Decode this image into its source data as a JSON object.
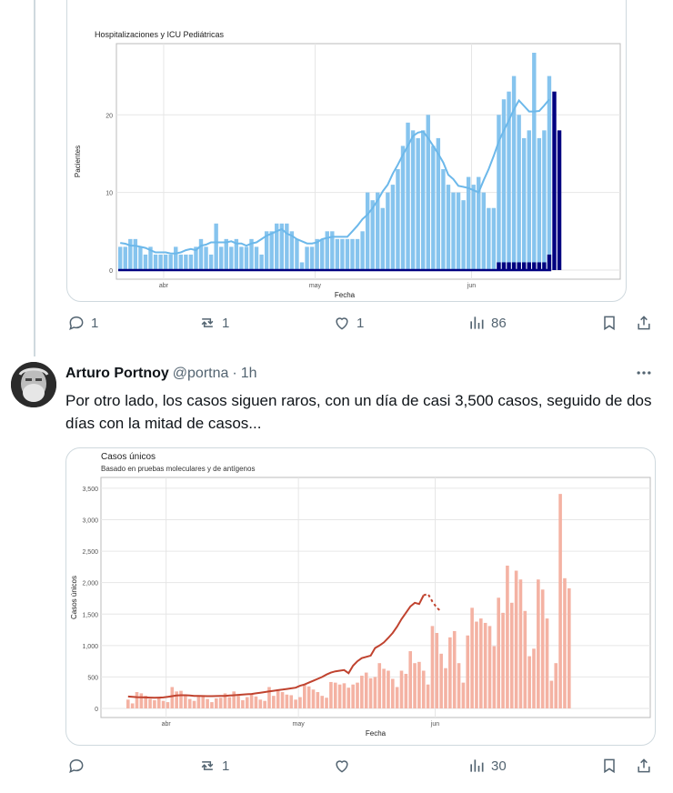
{
  "chart1": {
    "title": "Hospitalizaciones y ICU Pediátricas",
    "xlabel": "Fecha",
    "ylabel": "Pacientes",
    "colors": {
      "hosp": "#86c4ee",
      "icu": "#000080",
      "trend": "#6cb8ea"
    }
  },
  "chart2": {
    "title": "Casos únicos",
    "subtitle": "Basado en pruebas moleculares y de antígenos",
    "xlabel": "Fecha",
    "ylabel": "Casos únicos",
    "colors": {
      "bar": "#f4b2a3",
      "trend": "#c0432f"
    }
  },
  "chart_data": [
    {
      "type": "bar",
      "title": "Hospitalizaciones y ICU Pediátricas",
      "xlabel": "Fecha",
      "ylabel": "Pacientes",
      "ylim": [
        0,
        28
      ],
      "y_ticks": [
        0,
        10,
        20
      ],
      "x_ticks": [
        {
          "label": "abr",
          "index": 9
        },
        {
          "label": "may",
          "index": 39
        },
        {
          "label": "jun",
          "index": 70
        }
      ],
      "series": [
        {
          "values": [
            3,
            3,
            4,
            4,
            3,
            2,
            3,
            2,
            2,
            2,
            2,
            3,
            2,
            2,
            2,
            3,
            4,
            3,
            2,
            6,
            3,
            4,
            3,
            4,
            3,
            3,
            4,
            3,
            2,
            5,
            5,
            6,
            6,
            6,
            5,
            4,
            1,
            3,
            3,
            4,
            4,
            5,
            5,
            4,
            4,
            4,
            4,
            4,
            5,
            10,
            9,
            10,
            8,
            10,
            11,
            13,
            16,
            19,
            18,
            17,
            18,
            20,
            16,
            17,
            13,
            11,
            10,
            10,
            9,
            12,
            11,
            12,
            10,
            8,
            8,
            20,
            22,
            23,
            25,
            20,
            17,
            18,
            28,
            17,
            18,
            25
          ]
        },
        {
          "values": [
            0,
            0,
            0,
            0,
            0,
            0,
            0,
            0,
            0,
            0,
            0,
            0,
            0,
            0,
            0,
            0,
            0,
            0,
            0,
            0,
            0,
            0,
            0,
            0,
            0,
            0,
            0,
            0,
            0,
            0,
            0,
            0,
            0,
            0,
            0,
            0,
            0,
            0,
            0,
            0,
            0,
            0,
            0,
            0,
            0,
            0,
            0,
            0,
            0,
            0,
            0,
            0,
            0,
            0,
            0,
            0,
            0,
            0,
            0,
            0,
            0,
            0,
            0,
            0,
            0,
            0,
            0,
            0,
            0,
            0,
            0,
            0,
            0,
            0,
            0,
            1,
            1,
            1,
            1,
            1,
            1,
            1,
            1,
            1,
            1,
            2,
            23,
            18
          ]
        }
      ]
    },
    {
      "type": "bar",
      "title": "Casos únicos",
      "subtitle": "Basado en pruebas moleculares y de antígenos",
      "xlabel": "Fecha",
      "ylabel": "Casos únicos",
      "ylim": [
        0,
        3600
      ],
      "y_ticks": [
        {
          "value": 0,
          "label": "0"
        },
        {
          "value": 500,
          "label": "500"
        },
        {
          "value": 1000,
          "label": "1,000"
        },
        {
          "value": 1500,
          "label": "1,500"
        },
        {
          "value": 2000,
          "label": "2,000"
        },
        {
          "value": 2500,
          "label": "2,500"
        },
        {
          "value": 3000,
          "label": "3,000"
        },
        {
          "value": 3500,
          "label": "3,500"
        }
      ],
      "x_ticks": [
        {
          "label": "abr",
          "index": 9
        },
        {
          "label": "may",
          "index": 39
        },
        {
          "label": "jun",
          "index": 70
        }
      ],
      "series": [
        {
          "values": [
            140,
            80,
            260,
            240,
            200,
            150,
            130,
            180,
            120,
            100,
            340,
            270,
            280,
            220,
            150,
            120,
            200,
            210,
            150,
            100,
            160,
            170,
            240,
            180,
            270,
            200,
            130,
            180,
            220,
            190,
            140,
            120,
            340,
            200,
            280,
            260,
            220,
            210,
            140,
            180,
            380,
            350,
            300,
            260,
            200,
            170,
            420,
            410,
            380,
            400,
            330,
            380,
            410,
            520,
            570,
            480,
            500,
            720,
            630,
            600,
            470,
            340,
            600,
            550,
            910,
            720,
            740,
            600,
            380,
            1310,
            1200,
            870,
            640,
            1130,
            1230,
            720,
            410,
            1160,
            1600,
            1380,
            1430,
            1360,
            1310,
            990,
            1760,
            1520,
            2270,
            1680,
            2190,
            2050,
            1550,
            830,
            950,
            2050,
            1890,
            1430,
            440,
            720,
            3410,
            2070,
            1910
          ]
        },
        {
          "name": "",
          "values": [
            190,
            185,
            180,
            178,
            175,
            172,
            170,
            172,
            175,
            185,
            195,
            205,
            210,
            210,
            205,
            200,
            198,
            196,
            195,
            195,
            197,
            198,
            200,
            205,
            210,
            215,
            220,
            225,
            230,
            240,
            250,
            260,
            270,
            280,
            290,
            300,
            310,
            320,
            330,
            360,
            380,
            410,
            440,
            470,
            500,
            540,
            570,
            590,
            600,
            610,
            560,
            680,
            750,
            800,
            820,
            840,
            960,
            1000,
            1050,
            1120,
            1200,
            1300,
            1420,
            1520,
            1620,
            1680,
            1660,
            1800,
            1820,
            1700,
            1600,
            1540
          ]
        }
      ]
    }
  ],
  "tweet1_actions": {
    "reply": "1",
    "retweet": "1",
    "like": "1",
    "views": "86"
  },
  "tweet2": {
    "name": "Arturo Portnoy",
    "handle": "@portna",
    "dot": "·",
    "time": "1h",
    "text": "Por otro lado, los casos siguen raros, con un día de casi 3,500 casos, seguido de dos días con la mitad de casos..."
  },
  "tweet2_actions": {
    "reply": "",
    "retweet": "1",
    "like": "",
    "views": "30"
  },
  "icons": [
    "reply-icon",
    "retweet-icon",
    "like-icon",
    "views-icon",
    "bookmark-icon",
    "share-icon",
    "more-icon"
  ]
}
